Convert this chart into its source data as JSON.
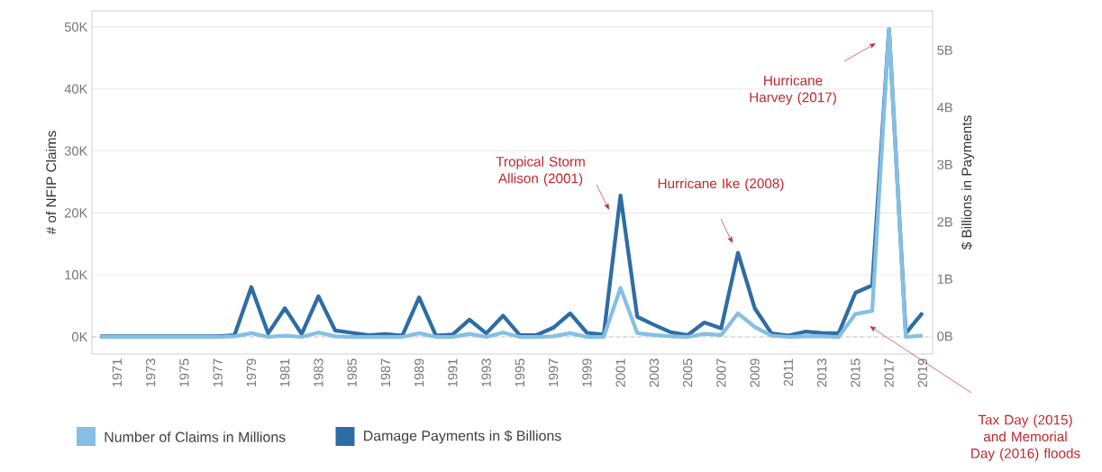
{
  "chart_data": {
    "type": "line",
    "x": [
      1970,
      1971,
      1972,
      1973,
      1974,
      1975,
      1976,
      1977,
      1978,
      1979,
      1980,
      1981,
      1982,
      1983,
      1984,
      1985,
      1986,
      1987,
      1988,
      1989,
      1990,
      1991,
      1992,
      1993,
      1994,
      1995,
      1996,
      1997,
      1998,
      1999,
      2000,
      2001,
      2002,
      2003,
      2004,
      2005,
      2006,
      2007,
      2008,
      2009,
      2010,
      2011,
      2012,
      2013,
      2014,
      2015,
      2016,
      2017,
      2018,
      2019
    ],
    "series": [
      {
        "name": "Number of Claims in Millions",
        "color": "#85bfe3",
        "values": [
          0,
          0,
          0,
          0,
          0,
          0,
          0,
          0,
          100,
          600,
          0,
          200,
          0,
          700,
          100,
          0,
          0,
          0,
          0,
          600,
          0,
          0,
          500,
          0,
          700,
          0,
          0,
          100,
          600,
          0,
          0,
          7900,
          600,
          300,
          100,
          0,
          500,
          300,
          3800,
          1600,
          200,
          0,
          100,
          100,
          0,
          3700,
          4200,
          49700,
          0,
          200
        ]
      },
      {
        "name": "Damage Payments in $ Billions",
        "color": "#2e6da4",
        "axis": "y2",
        "values": [
          0,
          0,
          0,
          0,
          0,
          0,
          0,
          0,
          0.02,
          0.86,
          0.05,
          0.49,
          0.04,
          0.7,
          0.1,
          0.06,
          0.02,
          0.04,
          0.01,
          0.68,
          0.01,
          0.03,
          0.29,
          0.05,
          0.36,
          0.02,
          0.02,
          0.15,
          0.4,
          0.06,
          0.03,
          2.46,
          0.34,
          0.2,
          0.07,
          0.02,
          0.24,
          0.14,
          1.46,
          0.49,
          0.05,
          0.01,
          0.08,
          0.06,
          0.05,
          0.76,
          0.89,
          5.37,
          0.05,
          0.41
        ]
      }
    ],
    "xlim": [
      1969.5,
      2019.6
    ],
    "xticks": [
      1971,
      1973,
      1975,
      1977,
      1979,
      1981,
      1983,
      1985,
      1987,
      1989,
      1991,
      1993,
      1995,
      1997,
      1999,
      2001,
      2003,
      2005,
      2007,
      2009,
      2011,
      2013,
      2015,
      2017,
      2019
    ],
    "ylim": [
      -2760,
      52600
    ],
    "yticks": [
      {
        "value": 0,
        "label": "0K"
      },
      {
        "value": 10000,
        "label": "10K"
      },
      {
        "value": 20000,
        "label": "20K"
      },
      {
        "value": 30000,
        "label": "30K"
      },
      {
        "value": 40000,
        "label": "40K"
      },
      {
        "value": 50000,
        "label": "50K"
      }
    ],
    "y2lim": [
      -0.31,
      5.69
    ],
    "y2ticks": [
      {
        "value": 0,
        "label": "0B"
      },
      {
        "value": 1,
        "label": "1B"
      },
      {
        "value": 2,
        "label": "2B"
      },
      {
        "value": 3,
        "label": "3B"
      },
      {
        "value": 4,
        "label": "4B"
      },
      {
        "value": 5,
        "label": "5B"
      }
    ],
    "ylabel": "# of NFIP Claims",
    "y2label": "$ Billions in Payments",
    "grid": "y",
    "legend": "bottom",
    "marker": "none",
    "line_style": "solid",
    "ref_lines": [
      {
        "axis": "y",
        "value": 0,
        "color": "#bbbbbb",
        "line_style": "dashed"
      }
    ],
    "annotations": [
      "Tropical Storm Allison (2001)",
      "Hurricane Ike (2008)",
      "Hurricane Harvey (2017)",
      "Tax Day (2015) and Memorial Day (2016) floods"
    ]
  }
}
